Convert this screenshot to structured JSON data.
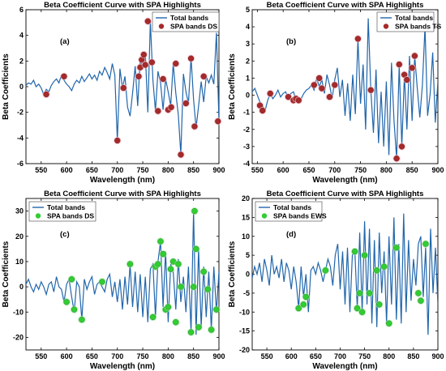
{
  "chart_data": [
    {
      "type": "line",
      "panel_label": "(a)",
      "title": "Beta Coefficient Curve with SPA Highlights",
      "xlabel": "Wavelength (nm)",
      "ylabel": "Beta Coefficients",
      "xlim": [
        520,
        900
      ],
      "ylim": [
        -6,
        6
      ],
      "xticks": [
        550,
        600,
        650,
        700,
        750,
        800,
        850,
        900
      ],
      "yticks": [
        -6,
        -4,
        -2,
        0,
        2,
        4,
        6
      ],
      "legend": {
        "position": "top-right",
        "entries": [
          "Total bands",
          "SPA bands DS"
        ]
      },
      "line_color": "#2166ac",
      "marker_color": "#a52a2a",
      "series": [
        {
          "name": "Total bands",
          "x": [
            520,
            525,
            530,
            535,
            540,
            545,
            550,
            555,
            560,
            565,
            570,
            575,
            580,
            585,
            590,
            595,
            600,
            605,
            610,
            615,
            620,
            625,
            630,
            635,
            640,
            645,
            650,
            655,
            660,
            665,
            670,
            675,
            680,
            685,
            690,
            695,
            700,
            705,
            710,
            715,
            720,
            725,
            730,
            735,
            740,
            745,
            750,
            755,
            760,
            765,
            770,
            775,
            780,
            785,
            790,
            795,
            800,
            805,
            810,
            815,
            820,
            825,
            830,
            835,
            840,
            845,
            850,
            855,
            860,
            865,
            870,
            875,
            880,
            885,
            890,
            895,
            900
          ],
          "y": [
            0.1,
            0.3,
            0.2,
            0.5,
            0.0,
            0.2,
            -0.1,
            -0.6,
            -0.2,
            -0.4,
            0.1,
            0.4,
            0.6,
            0.3,
            0.9,
            0.5,
            0.2,
            0.0,
            -0.3,
            0.2,
            0.5,
            0.3,
            0.8,
            0.4,
            0.7,
            1.0,
            0.6,
            0.9,
            0.5,
            1.2,
            0.9,
            1.5,
            1.1,
            0.6,
            1.8,
            0.9,
            -4.2,
            1.4,
            -0.1,
            0.8,
            -1.6,
            -2.3,
            -0.5,
            1.6,
            -1.5,
            2.1,
            1.4,
            2.6,
            -2.0,
            5.1,
            0.5,
            -1.9,
            1.2,
            0.3,
            -1.8,
            0.6,
            -0.4,
            -1.5,
            1.8,
            -0.5,
            -2.2,
            -5.3,
            1.0,
            -0.4,
            -1.3,
            2.3,
            -1.0,
            -3.2,
            -1.5,
            0.4,
            -1.2,
            0.8,
            0.3,
            0.9,
            0.2,
            4.2,
            -2.7
          ]
        },
        {
          "name": "SPA bands DS",
          "x": [
            560,
            595,
            700,
            712,
            742,
            745,
            748,
            752,
            755,
            760,
            768,
            780,
            790,
            800,
            806,
            815,
            825,
            835,
            845,
            852,
            870,
            898
          ],
          "y": [
            -0.6,
            0.8,
            -4.2,
            -0.1,
            0.8,
            1.5,
            2.1,
            2.5,
            1.7,
            5.1,
            1.9,
            -1.9,
            0.6,
            -1.8,
            -1.6,
            1.8,
            -5.3,
            -1.3,
            2.2,
            -3.1,
            0.8,
            -2.7
          ]
        }
      ]
    },
    {
      "type": "line",
      "panel_label": "(b)",
      "title": "Beta Coefficient Curve with SPA Highlights",
      "xlabel": "Wavelength (nm)",
      "ylabel": "Beta Coefficients",
      "xlim": [
        540,
        900
      ],
      "ylim": [
        -4,
        5
      ],
      "xticks": [
        550,
        600,
        650,
        700,
        750,
        800,
        850,
        900
      ],
      "yticks": [
        -4,
        -3,
        -2,
        -1,
        0,
        1,
        2,
        3,
        4,
        5
      ],
      "legend": {
        "position": "top-right",
        "entries": [
          "Total bands",
          "SPA bands TS"
        ]
      },
      "line_color": "#2166ac",
      "marker_color": "#a52a2a",
      "series": [
        {
          "name": "Total bands",
          "x": [
            540,
            545,
            550,
            555,
            560,
            565,
            570,
            575,
            580,
            585,
            590,
            595,
            600,
            605,
            610,
            615,
            620,
            625,
            630,
            635,
            640,
            645,
            650,
            655,
            660,
            665,
            670,
            675,
            680,
            685,
            690,
            695,
            700,
            705,
            710,
            715,
            720,
            725,
            730,
            735,
            740,
            745,
            750,
            755,
            760,
            765,
            770,
            775,
            780,
            785,
            790,
            795,
            800,
            805,
            810,
            815,
            820,
            825,
            830,
            835,
            840,
            845,
            850,
            855,
            860,
            865,
            870,
            875,
            880,
            885,
            890,
            895,
            900
          ],
          "y": [
            0.2,
            0.4,
            0.0,
            -0.4,
            -0.6,
            -0.9,
            -0.3,
            0.1,
            -0.2,
            0.0,
            0.3,
            -0.1,
            0.1,
            0.2,
            -0.2,
            0.1,
            0.2,
            -0.3,
            -0.3,
            -0.2,
            0.1,
            0.3,
            0.4,
            0.6,
            0.3,
            1.0,
            0.5,
            0.9,
            0.1,
            1.2,
            0.6,
            -0.2,
            0.9,
            1.6,
            -0.1,
            0.9,
            -1.2,
            0.7,
            -1.5,
            1.2,
            -1.1,
            3.3,
            -0.5,
            1.8,
            -2.0,
            4.5,
            0.3,
            -2.2,
            1.5,
            -2.8,
            0.2,
            -3.0,
            0.8,
            -3.5,
            1.9,
            -1.5,
            -3.7,
            1.8,
            -3.0,
            1.2,
            -2.0,
            2.3,
            -1.5,
            2.3,
            0.4,
            -1.3,
            0.6,
            4.0,
            -1.2,
            0.1,
            2.5,
            -1.6,
            0.8
          ]
        },
        {
          "name": "SPA bands TS",
          "x": [
            555,
            560,
            575,
            610,
            620,
            625,
            630,
            660,
            670,
            675,
            690,
            700,
            745,
            770,
            820,
            825,
            830,
            835,
            840,
            850,
            855
          ],
          "y": [
            -0.6,
            -0.9,
            0.1,
            -0.1,
            -0.3,
            -0.2,
            -0.3,
            0.6,
            1.0,
            0.4,
            -0.1,
            0.6,
            3.3,
            0.3,
            -3.7,
            1.8,
            -3.0,
            1.2,
            0.9,
            1.6,
            2.3
          ]
        }
      ]
    },
    {
      "type": "line",
      "panel_label": "(c)",
      "title": "Beta Coefficient Curve with SPA Highlights",
      "xlabel": "Wavelength (nm)",
      "ylabel": "Beta Coefficients",
      "xlim": [
        520,
        900
      ],
      "ylim": [
        -25,
        35
      ],
      "xticks": [
        550,
        600,
        650,
        700,
        750,
        800,
        850,
        900
      ],
      "yticks": [
        -20,
        -10,
        0,
        10,
        20,
        30
      ],
      "legend": {
        "position": "top-left",
        "entries": [
          "Total bands",
          "SPA bands DS"
        ]
      },
      "line_color": "#2166ac",
      "marker_color": "#32cd32",
      "series": [
        {
          "name": "Total bands",
          "x": [
            520,
            525,
            530,
            535,
            540,
            545,
            550,
            555,
            560,
            565,
            570,
            575,
            580,
            585,
            590,
            595,
            600,
            605,
            610,
            615,
            620,
            625,
            630,
            635,
            640,
            645,
            650,
            655,
            660,
            665,
            670,
            675,
            680,
            685,
            690,
            695,
            700,
            705,
            710,
            715,
            720,
            725,
            730,
            735,
            740,
            745,
            750,
            755,
            760,
            765,
            770,
            775,
            780,
            785,
            790,
            795,
            800,
            805,
            810,
            815,
            820,
            825,
            830,
            835,
            840,
            845,
            850,
            855,
            860,
            865,
            870,
            875,
            880,
            885,
            890,
            895,
            900
          ],
          "y": [
            1,
            3,
            0,
            -2,
            1,
            -1,
            2,
            0,
            -3,
            1,
            2,
            -2,
            4,
            0,
            -1,
            -6,
            1,
            3,
            -4,
            -10,
            2,
            0,
            -13,
            3,
            -1,
            2,
            4,
            -3,
            1,
            2,
            0,
            -2,
            3,
            5,
            -4,
            2,
            -6,
            3,
            -9,
            4,
            -7,
            9,
            -8,
            6,
            -10,
            5,
            -12,
            4,
            -14,
            7,
            9,
            -12,
            10,
            18,
            -8,
            14,
            -14,
            9,
            6,
            -9,
            11,
            -6,
            4,
            -10,
            8,
            -18,
            30,
            -19,
            15,
            -16,
            8,
            -12,
            6,
            -17,
            8,
            -10,
            6
          ]
        },
        {
          "name": "SPA bands DS",
          "x": [
            600,
            610,
            615,
            630,
            670,
            725,
            770,
            775,
            780,
            785,
            790,
            795,
            800,
            805,
            810,
            815,
            820,
            825,
            845,
            850,
            852,
            855,
            860,
            870,
            878,
            885,
            895
          ],
          "y": [
            -6,
            3,
            -9,
            -13,
            2,
            9,
            -12,
            8,
            9,
            18,
            13,
            -9,
            -8,
            7,
            10,
            -14,
            9,
            0,
            -18,
            0,
            30,
            15,
            -16,
            6,
            -1,
            -17,
            -9
          ]
        }
      ]
    },
    {
      "type": "line",
      "panel_label": "(d)",
      "title": "Beta Coefficient Curve with SPA Highlights",
      "xlabel": "Wavelength (nm)",
      "ylabel": "Beta Coefficients",
      "xlim": [
        520,
        900
      ],
      "ylim": [
        -20,
        20
      ],
      "xticks": [
        550,
        600,
        650,
        700,
        750,
        800,
        850,
        900
      ],
      "yticks": [
        -20,
        -15,
        -10,
        -5,
        0,
        5,
        10,
        15,
        20
      ],
      "legend": {
        "position": "top-left",
        "entries": [
          "Total bands",
          "SPA bands EWS"
        ]
      },
      "line_color": "#2166ac",
      "marker_color": "#32cd32",
      "series": [
        {
          "name": "Total bands",
          "x": [
            520,
            525,
            530,
            535,
            540,
            545,
            550,
            555,
            560,
            565,
            570,
            575,
            580,
            585,
            590,
            595,
            600,
            605,
            610,
            615,
            620,
            625,
            630,
            635,
            640,
            645,
            650,
            655,
            660,
            665,
            670,
            675,
            680,
            685,
            690,
            695,
            700,
            705,
            710,
            715,
            720,
            725,
            730,
            735,
            740,
            745,
            750,
            755,
            760,
            765,
            770,
            775,
            780,
            785,
            790,
            795,
            800,
            805,
            810,
            815,
            820,
            825,
            830,
            835,
            840,
            845,
            850,
            855,
            860,
            865,
            870,
            875,
            880,
            885,
            890,
            895,
            900
          ],
          "y": [
            -1,
            2,
            0,
            3,
            -2,
            4,
            1,
            -3,
            5,
            0,
            2,
            -1,
            4,
            -2,
            3,
            1,
            -4,
            2,
            -2,
            -9,
            2,
            -6,
            0,
            -10,
            1,
            2,
            0,
            3,
            1,
            -2,
            1,
            4,
            2,
            -3,
            5,
            8,
            -4,
            6,
            -8,
            7,
            -10,
            5,
            6,
            -9,
            11,
            -10,
            14,
            -8,
            12,
            -13,
            9,
            -14,
            11,
            -5,
            6,
            -13,
            10,
            -8,
            15,
            -12,
            8,
            -13,
            16,
            -10,
            9,
            -7,
            4,
            -3,
            8,
            10,
            -6,
            7,
            -16,
            12,
            -5,
            7,
            -8
          ]
        },
        {
          "name": "SPA bands EWS",
          "x": [
            615,
            625,
            630,
            670,
            730,
            735,
            740,
            745,
            750,
            760,
            775,
            780,
            790,
            800,
            815,
            860,
            865,
            875
          ],
          "y": [
            -9,
            -8,
            -6,
            1,
            6,
            -9,
            -5,
            -10,
            5,
            -5,
            1,
            -8,
            2,
            -13,
            7,
            -5,
            -7,
            8
          ]
        }
      ]
    }
  ]
}
